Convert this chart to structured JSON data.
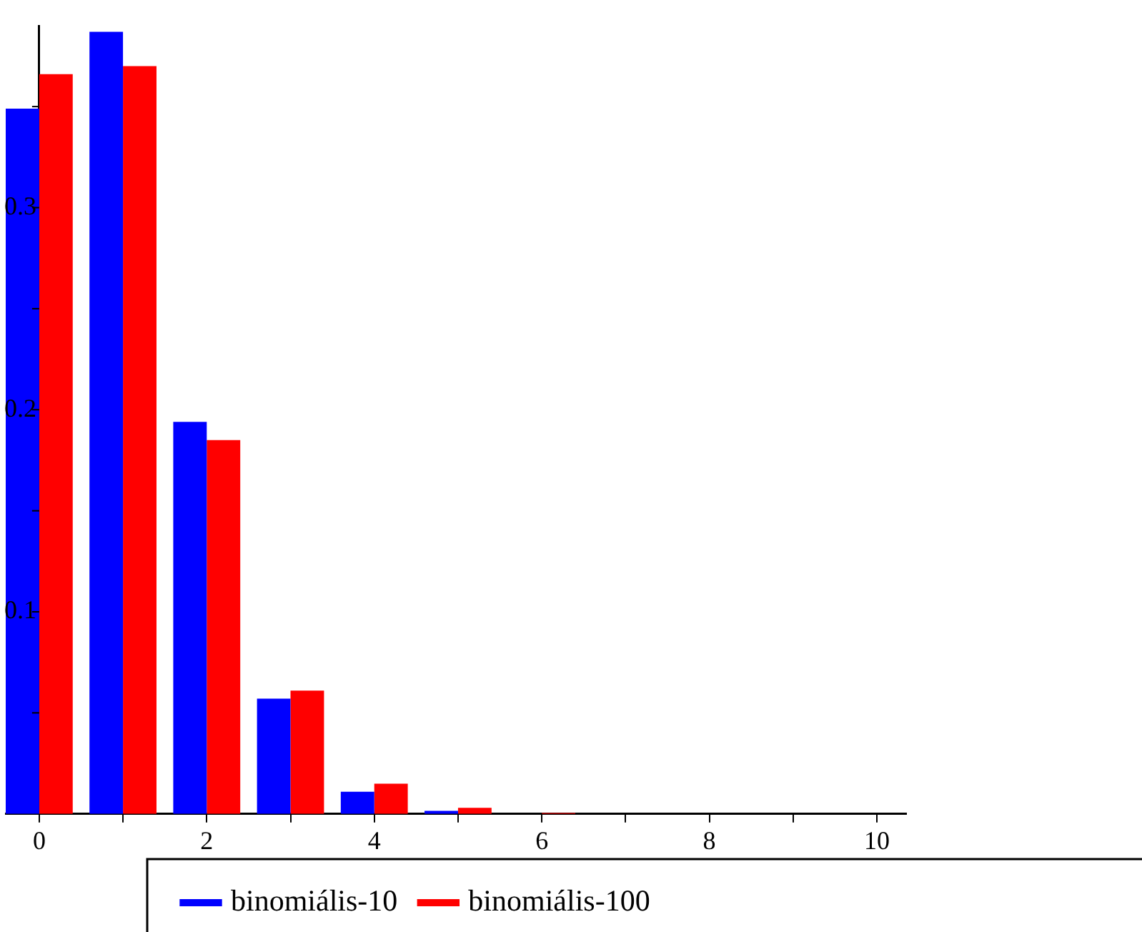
{
  "chart_data": {
    "type": "bar",
    "x": [
      0,
      1,
      2,
      3,
      4,
      5,
      6,
      7,
      8,
      9,
      10
    ],
    "series": [
      {
        "name": "binomiális-10",
        "color": "#0000ff",
        "values": [
          0.349,
          0.387,
          0.194,
          0.057,
          0.011,
          0.0015,
          0,
          0,
          0,
          0,
          0
        ]
      },
      {
        "name": "binomiális-100",
        "color": "#ff0000",
        "values": [
          0.366,
          0.37,
          0.185,
          0.061,
          0.015,
          0.003,
          0.0005,
          0,
          0,
          0,
          0
        ]
      }
    ],
    "xlim": [
      -0.4,
      10.35
    ],
    "xticks": [
      0,
      {
        "value": 1,
        "label": null
      },
      2,
      {
        "value": 3,
        "label": null
      },
      4,
      {
        "value": 5,
        "label": null
      },
      6,
      {
        "value": 7,
        "label": null
      },
      8,
      {
        "value": 9,
        "label": null
      },
      10
    ],
    "ylim": [
      0,
      0.39
    ],
    "yticks": [
      {
        "value": 0.05,
        "label": null
      },
      0.1,
      {
        "value": 0.15,
        "label": null
      },
      0.2,
      {
        "value": 0.25,
        "label": null
      },
      0.3,
      {
        "value": 0.35,
        "label": null
      }
    ],
    "grid": false,
    "legend": "bottom"
  }
}
